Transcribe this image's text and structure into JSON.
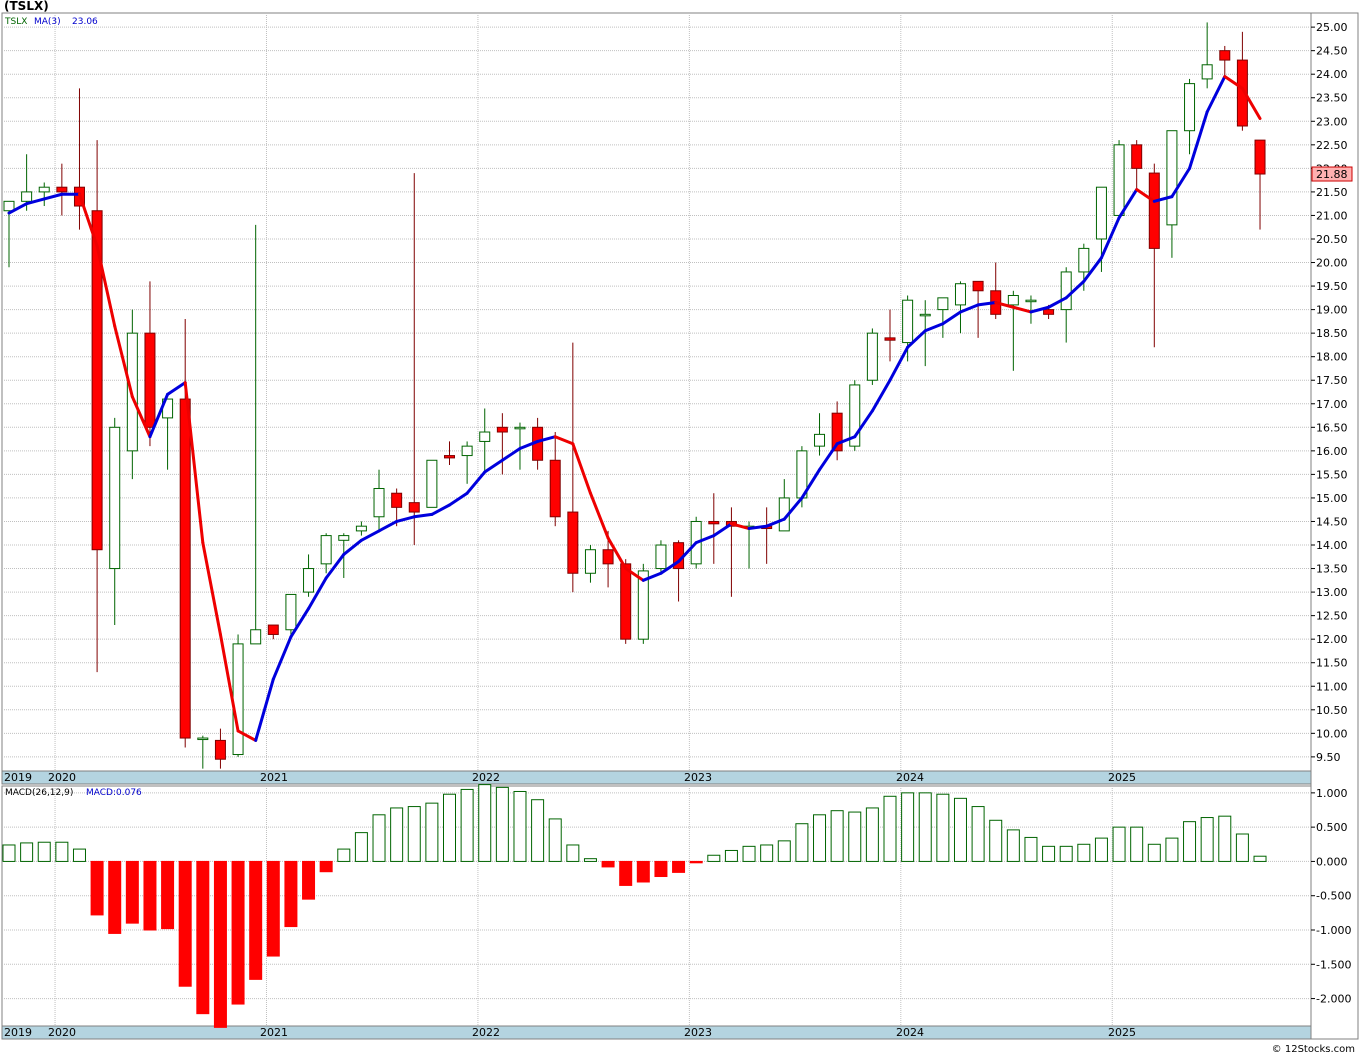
{
  "title": "(TSLX)",
  "watermark": "© 12Stocks.com",
  "colors": {
    "up_fill": "#ffffff",
    "up_stroke": "#006400",
    "down_fill": "#ff0000",
    "down_stroke": "#800000",
    "ma_up": "#0000dd",
    "ma_down": "#ee0000",
    "macd_up": "#006400",
    "macd_down": "#ff0000",
    "band": "#b4d4e0"
  },
  "legend": {
    "symbol": "TSLX",
    "ma_label": "MA(3)",
    "ma_value": "23.06",
    "macd_label": "MACD(26,12,9)",
    "macd_value": "MACD:0.076"
  },
  "last_price": "21.88",
  "chart_data": [
    {
      "type": "candlestick",
      "title": "(TSLX)",
      "period": "monthly",
      "x_labels": [
        "2019",
        "2020",
        "2021",
        "2022",
        "2023",
        "2024",
        "2025"
      ],
      "ylim": [
        9.2,
        25.3
      ],
      "y_ticks": [
        "9.50",
        "10.00",
        "10.50",
        "11.00",
        "11.50",
        "12.00",
        "12.50",
        "13.00",
        "13.50",
        "14.00",
        "14.50",
        "15.00",
        "15.50",
        "16.00",
        "16.50",
        "17.00",
        "17.50",
        "18.00",
        "18.50",
        "19.00",
        "19.50",
        "20.00",
        "20.50",
        "21.00",
        "21.50",
        "22.00",
        "22.50",
        "23.00",
        "23.50",
        "24.00",
        "24.50",
        "25.00"
      ],
      "grid": true,
      "series": [
        {
          "name": "TSLX",
          "ohlc": [
            [
              21.1,
              21.3,
              19.9,
              21.3
            ],
            [
              21.3,
              22.3,
              21.1,
              21.5
            ],
            [
              21.5,
              21.7,
              21.2,
              21.6
            ],
            [
              21.6,
              22.1,
              21.0,
              21.5
            ],
            [
              21.6,
              23.7,
              20.7,
              21.2
            ],
            [
              21.1,
              22.6,
              11.3,
              13.9
            ],
            [
              13.5,
              16.7,
              12.3,
              16.5
            ],
            [
              16.0,
              19.0,
              15.4,
              18.5
            ],
            [
              18.5,
              19.6,
              16.1,
              16.5
            ],
            [
              16.7,
              17.1,
              15.6,
              17.1
            ],
            [
              17.1,
              18.8,
              9.7,
              9.9
            ],
            [
              9.9,
              9.95,
              9.25,
              9.9
            ],
            [
              9.85,
              10.1,
              9.25,
              9.45
            ],
            [
              9.55,
              12.1,
              9.5,
              11.9
            ],
            [
              11.9,
              20.8,
              11.9,
              12.2
            ],
            [
              12.3,
              12.3,
              12.0,
              12.1
            ],
            [
              12.2,
              12.9,
              12.0,
              12.95
            ],
            [
              13.0,
              13.8,
              12.9,
              13.5
            ],
            [
              13.6,
              14.25,
              13.4,
              14.2
            ],
            [
              14.1,
              14.25,
              13.3,
              14.2
            ],
            [
              14.3,
              14.5,
              14.2,
              14.4
            ],
            [
              14.6,
              15.6,
              14.3,
              15.2
            ],
            [
              15.1,
              15.2,
              14.4,
              14.8
            ],
            [
              14.9,
              21.9,
              14.0,
              14.7
            ],
            [
              14.8,
              15.8,
              14.8,
              15.8
            ],
            [
              15.9,
              16.2,
              15.7,
              15.85
            ],
            [
              15.9,
              16.2,
              15.3,
              16.1
            ],
            [
              16.2,
              16.9,
              15.5,
              16.4
            ],
            [
              16.5,
              16.8,
              15.5,
              16.4
            ],
            [
              16.5,
              16.6,
              15.6,
              16.5
            ],
            [
              16.5,
              16.7,
              15.6,
              15.8
            ],
            [
              15.8,
              16.4,
              14.4,
              14.6
            ],
            [
              14.7,
              18.3,
              13.0,
              13.4
            ],
            [
              13.4,
              14.0,
              13.2,
              13.9
            ],
            [
              13.9,
              14.3,
              13.1,
              13.6
            ],
            [
              13.6,
              13.7,
              11.9,
              12.0
            ],
            [
              12.0,
              13.6,
              11.9,
              13.45
            ],
            [
              13.5,
              14.1,
              13.4,
              14.0
            ],
            [
              14.05,
              14.1,
              12.8,
              13.5
            ],
            [
              13.6,
              14.6,
              13.5,
              14.5
            ],
            [
              14.5,
              15.1,
              13.6,
              14.45
            ],
            [
              14.5,
              14.8,
              12.9,
              14.4
            ],
            [
              14.4,
              14.5,
              13.5,
              14.4
            ],
            [
              14.4,
              14.8,
              13.6,
              14.35
            ],
            [
              14.3,
              15.4,
              14.3,
              15.0
            ],
            [
              15.0,
              16.1,
              14.8,
              16.0
            ],
            [
              16.1,
              16.8,
              15.9,
              16.35
            ],
            [
              16.8,
              17.05,
              15.8,
              16.0
            ],
            [
              16.1,
              17.5,
              16.0,
              17.4
            ],
            [
              17.5,
              18.6,
              17.4,
              18.5
            ],
            [
              18.4,
              19.0,
              17.9,
              18.35
            ],
            [
              18.3,
              19.3,
              17.9,
              19.2
            ],
            [
              18.9,
              19.2,
              17.8,
              18.9
            ],
            [
              19.0,
              19.2,
              18.4,
              19.25
            ],
            [
              19.1,
              19.6,
              18.5,
              19.55
            ],
            [
              19.6,
              19.6,
              18.4,
              19.4
            ],
            [
              19.4,
              20.0,
              18.8,
              18.9
            ],
            [
              19.1,
              19.4,
              17.7,
              19.3
            ],
            [
              19.2,
              19.3,
              18.7,
              19.2
            ],
            [
              19.0,
              19.1,
              18.8,
              18.9
            ],
            [
              19.0,
              19.9,
              18.3,
              19.8
            ],
            [
              19.8,
              20.4,
              19.4,
              20.3
            ],
            [
              20.5,
              21.6,
              19.8,
              21.6
            ],
            [
              21.0,
              22.6,
              20.9,
              22.5
            ],
            [
              22.5,
              22.6,
              21.5,
              22.0
            ],
            [
              21.9,
              22.1,
              18.2,
              20.3
            ],
            [
              20.8,
              22.8,
              20.1,
              22.8
            ],
            [
              22.8,
              23.9,
              22.3,
              23.8
            ],
            [
              23.9,
              25.1,
              23.7,
              24.2
            ],
            [
              24.5,
              24.6,
              23.9,
              24.3
            ],
            [
              24.3,
              24.9,
              22.8,
              22.9
            ],
            [
              22.6,
              22.6,
              20.7,
              21.88
            ]
          ]
        },
        {
          "name": "MA(3)",
          "values": [
            21.05,
            21.25,
            21.35,
            21.45,
            21.45,
            20.35,
            18.65,
            17.15,
            16.3,
            17.2,
            17.45,
            14.05,
            12.1,
            10.05,
            9.85,
            11.15,
            12.05,
            12.65,
            13.3,
            13.8,
            14.1,
            14.3,
            14.5,
            14.6,
            14.65,
            14.85,
            15.1,
            15.55,
            15.8,
            16.05,
            16.2,
            16.3,
            16.15,
            15.1,
            14.15,
            13.5,
            13.25,
            13.4,
            13.65,
            14.05,
            14.2,
            14.45,
            14.35,
            14.4,
            14.55,
            15.0,
            15.6,
            16.15,
            16.3,
            16.85,
            17.5,
            18.2,
            18.55,
            18.7,
            18.95,
            19.1,
            19.15,
            19.05,
            18.95,
            19.05,
            19.25,
            19.6,
            20.1,
            20.95,
            21.55,
            21.3,
            21.4,
            22.0,
            23.2,
            23.95,
            23.7,
            23.06
          ]
        }
      ]
    },
    {
      "type": "bar",
      "title": "MACD(26,12,9)",
      "ylim": [
        -2.4,
        1.1
      ],
      "y_ticks": [
        "1.000",
        "0.500",
        "0.000",
        "-0.500",
        "-1.000",
        "-1.500",
        "-2.000"
      ],
      "grid": true,
      "values": [
        0.24,
        0.27,
        0.28,
        0.28,
        0.18,
        -0.78,
        -1.05,
        -0.9,
        -1.0,
        -0.98,
        -1.82,
        -2.22,
        -2.42,
        -2.08,
        -1.72,
        -1.38,
        -0.95,
        -0.55,
        -0.15,
        0.18,
        0.42,
        0.68,
        0.78,
        0.8,
        0.85,
        0.98,
        1.05,
        1.12,
        1.08,
        1.02,
        0.9,
        0.62,
        0.24,
        0.04,
        -0.08,
        -0.35,
        -0.3,
        -0.22,
        -0.16,
        -0.02,
        0.09,
        0.16,
        0.22,
        0.24,
        0.3,
        0.55,
        0.68,
        0.74,
        0.72,
        0.78,
        0.95,
        1.0,
        1.0,
        0.98,
        0.92,
        0.8,
        0.6,
        0.46,
        0.35,
        0.22,
        0.22,
        0.25,
        0.34,
        0.5,
        0.5,
        0.25,
        0.34,
        0.58,
        0.64,
        0.66,
        0.4,
        0.076
      ]
    }
  ]
}
